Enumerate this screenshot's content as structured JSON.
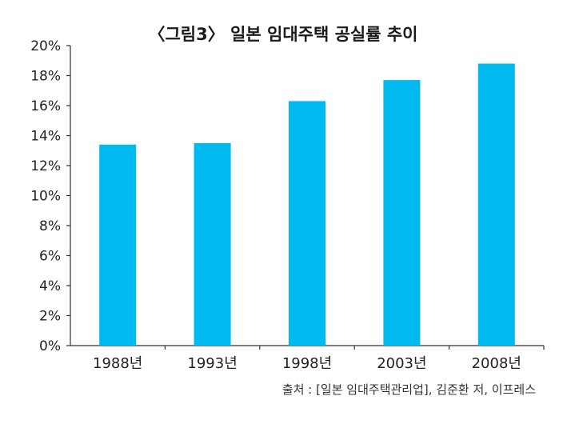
{
  "chart_data": {
    "type": "bar",
    "title": "〈그림3〉 일본 임대주택 공실률 추이",
    "xlabel": "",
    "ylabel": "",
    "categories": [
      "1988년",
      "1993년",
      "1998년",
      "2003년",
      "2008년"
    ],
    "values": [
      13.4,
      13.5,
      16.3,
      17.7,
      18.8
    ],
    "unit": "%",
    "ylim": [
      0,
      20
    ],
    "yticks": [
      "0%",
      "2%",
      "4%",
      "6%",
      "8%",
      "10%",
      "12%",
      "14%",
      "16%",
      "18%",
      "20%"
    ],
    "grid": false,
    "legend": "none",
    "bar_color": "#00B9EF",
    "source": "출처 : [일본 임대주택관리업], 김준환 저, 이프레스"
  }
}
